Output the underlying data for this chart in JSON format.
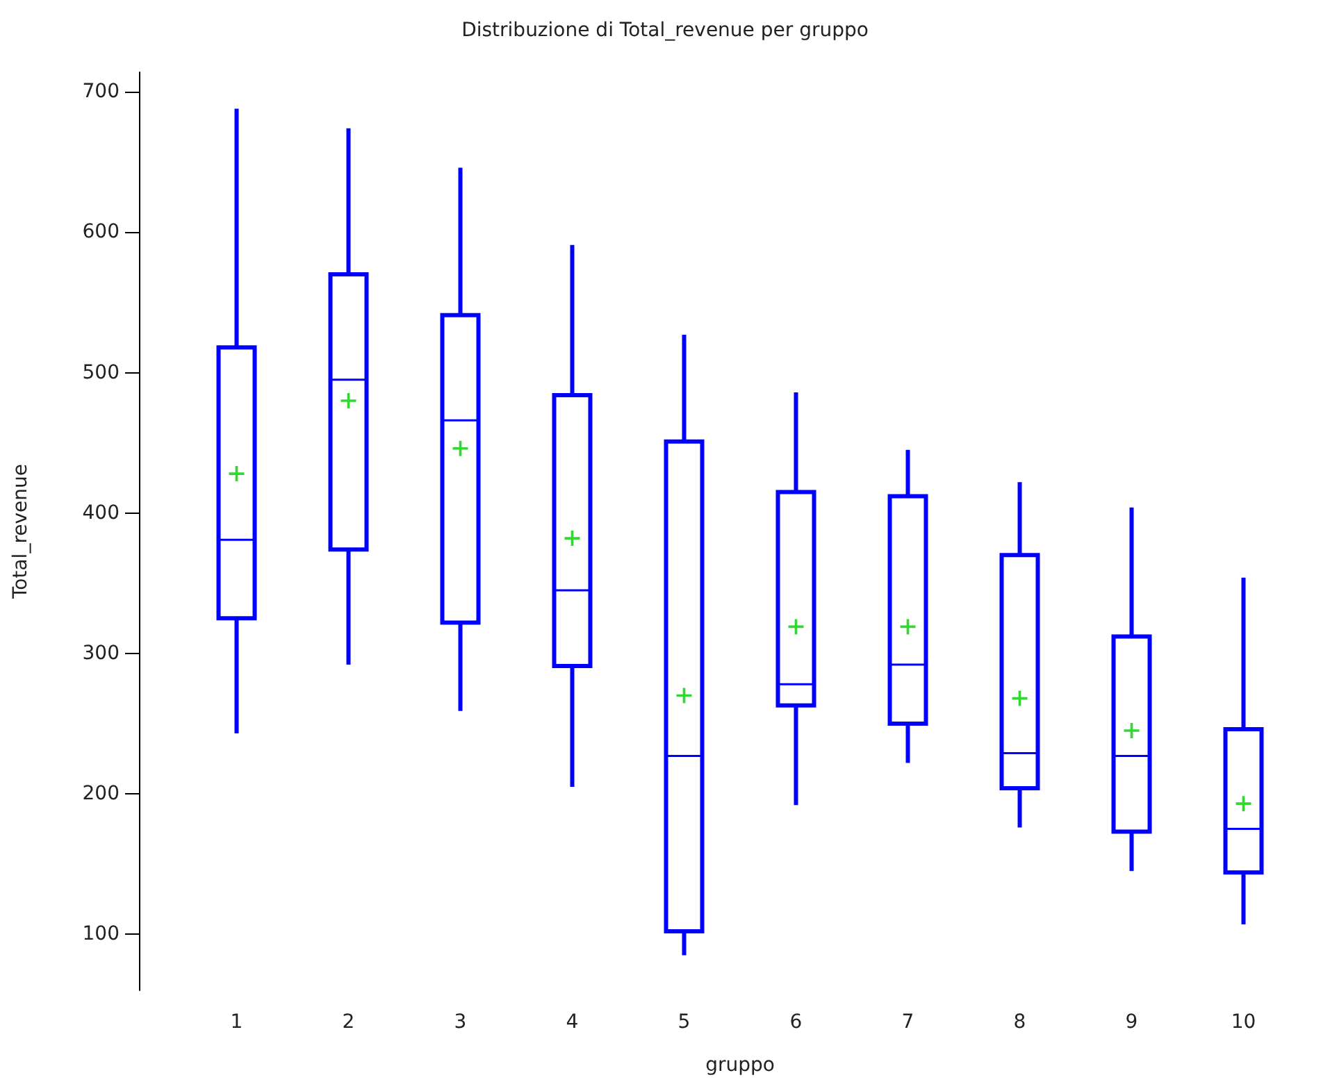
{
  "chart_data": {
    "type": "box",
    "title": "Distribuzione di Total_revenue per gruppo",
    "xlabel": "gruppo",
    "ylabel": "Total_revenue",
    "categories": [
      "1",
      "2",
      "3",
      "4",
      "5",
      "6",
      "7",
      "8",
      "9",
      "10"
    ],
    "ylim": [
      60,
      714
    ],
    "yticks": [
      100,
      200,
      300,
      400,
      500,
      600,
      700
    ],
    "grid": false,
    "series": [
      {
        "type": "box",
        "color": "#0000ff",
        "boxes": [
          {
            "low": 243,
            "q1": 325,
            "median": 381,
            "q3": 518,
            "high": 688
          },
          {
            "low": 292,
            "q1": 374,
            "median": 495,
            "q3": 570,
            "high": 674
          },
          {
            "low": 259,
            "q1": 322,
            "median": 466,
            "q3": 541,
            "high": 646
          },
          {
            "low": 205,
            "q1": 291,
            "median": 345,
            "q3": 484,
            "high": 591
          },
          {
            "low": 85,
            "q1": 102,
            "median": 227,
            "q3": 451,
            "high": 527
          },
          {
            "low": 192,
            "q1": 263,
            "median": 278,
            "q3": 415,
            "high": 486
          },
          {
            "low": 222,
            "q1": 250,
            "median": 292,
            "q3": 412,
            "high": 445
          },
          {
            "low": 176,
            "q1": 204,
            "median": 229,
            "q3": 370,
            "high": 422
          },
          {
            "low": 145,
            "q1": 173,
            "median": 227,
            "q3": 312,
            "high": 404
          },
          {
            "low": 107,
            "q1": 144,
            "median": 175,
            "q3": 246,
            "high": 354
          }
        ]
      },
      {
        "type": "scatter",
        "color": "#00cc00",
        "marker": "cross",
        "x": [
          "1",
          "2",
          "3",
          "4",
          "5",
          "6",
          "7",
          "8",
          "9",
          "10"
        ],
        "values": [
          428,
          480,
          446,
          382,
          270,
          319,
          319,
          268,
          245,
          193
        ]
      }
    ]
  }
}
